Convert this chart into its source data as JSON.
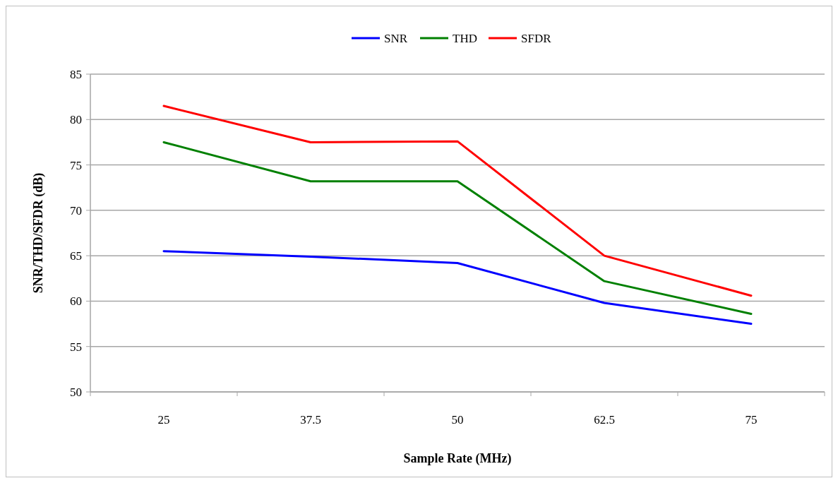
{
  "chart_data": {
    "type": "line",
    "xlabel": "Sample Rate (MHz)",
    "ylabel": "SNR/THD/SFDR (dB)",
    "categories": [
      "25",
      "37.5",
      "50",
      "62.5",
      "75"
    ],
    "series": [
      {
        "name": "SNR",
        "color": "#0000ff",
        "values": [
          65.5,
          64.9,
          64.2,
          59.8,
          57.5
        ]
      },
      {
        "name": "THD",
        "color": "#008000",
        "values": [
          77.5,
          73.2,
          73.2,
          62.2,
          58.6
        ]
      },
      {
        "name": "SFDR",
        "color": "#ff0000",
        "values": [
          81.5,
          77.5,
          77.6,
          65,
          60.6
        ]
      }
    ],
    "ylim": [
      50,
      85
    ],
    "yticks": [
      50,
      55,
      60,
      65,
      70,
      75,
      80,
      85
    ],
    "grid": "y",
    "legend": "top",
    "marker": "none",
    "line_style": "solid"
  }
}
